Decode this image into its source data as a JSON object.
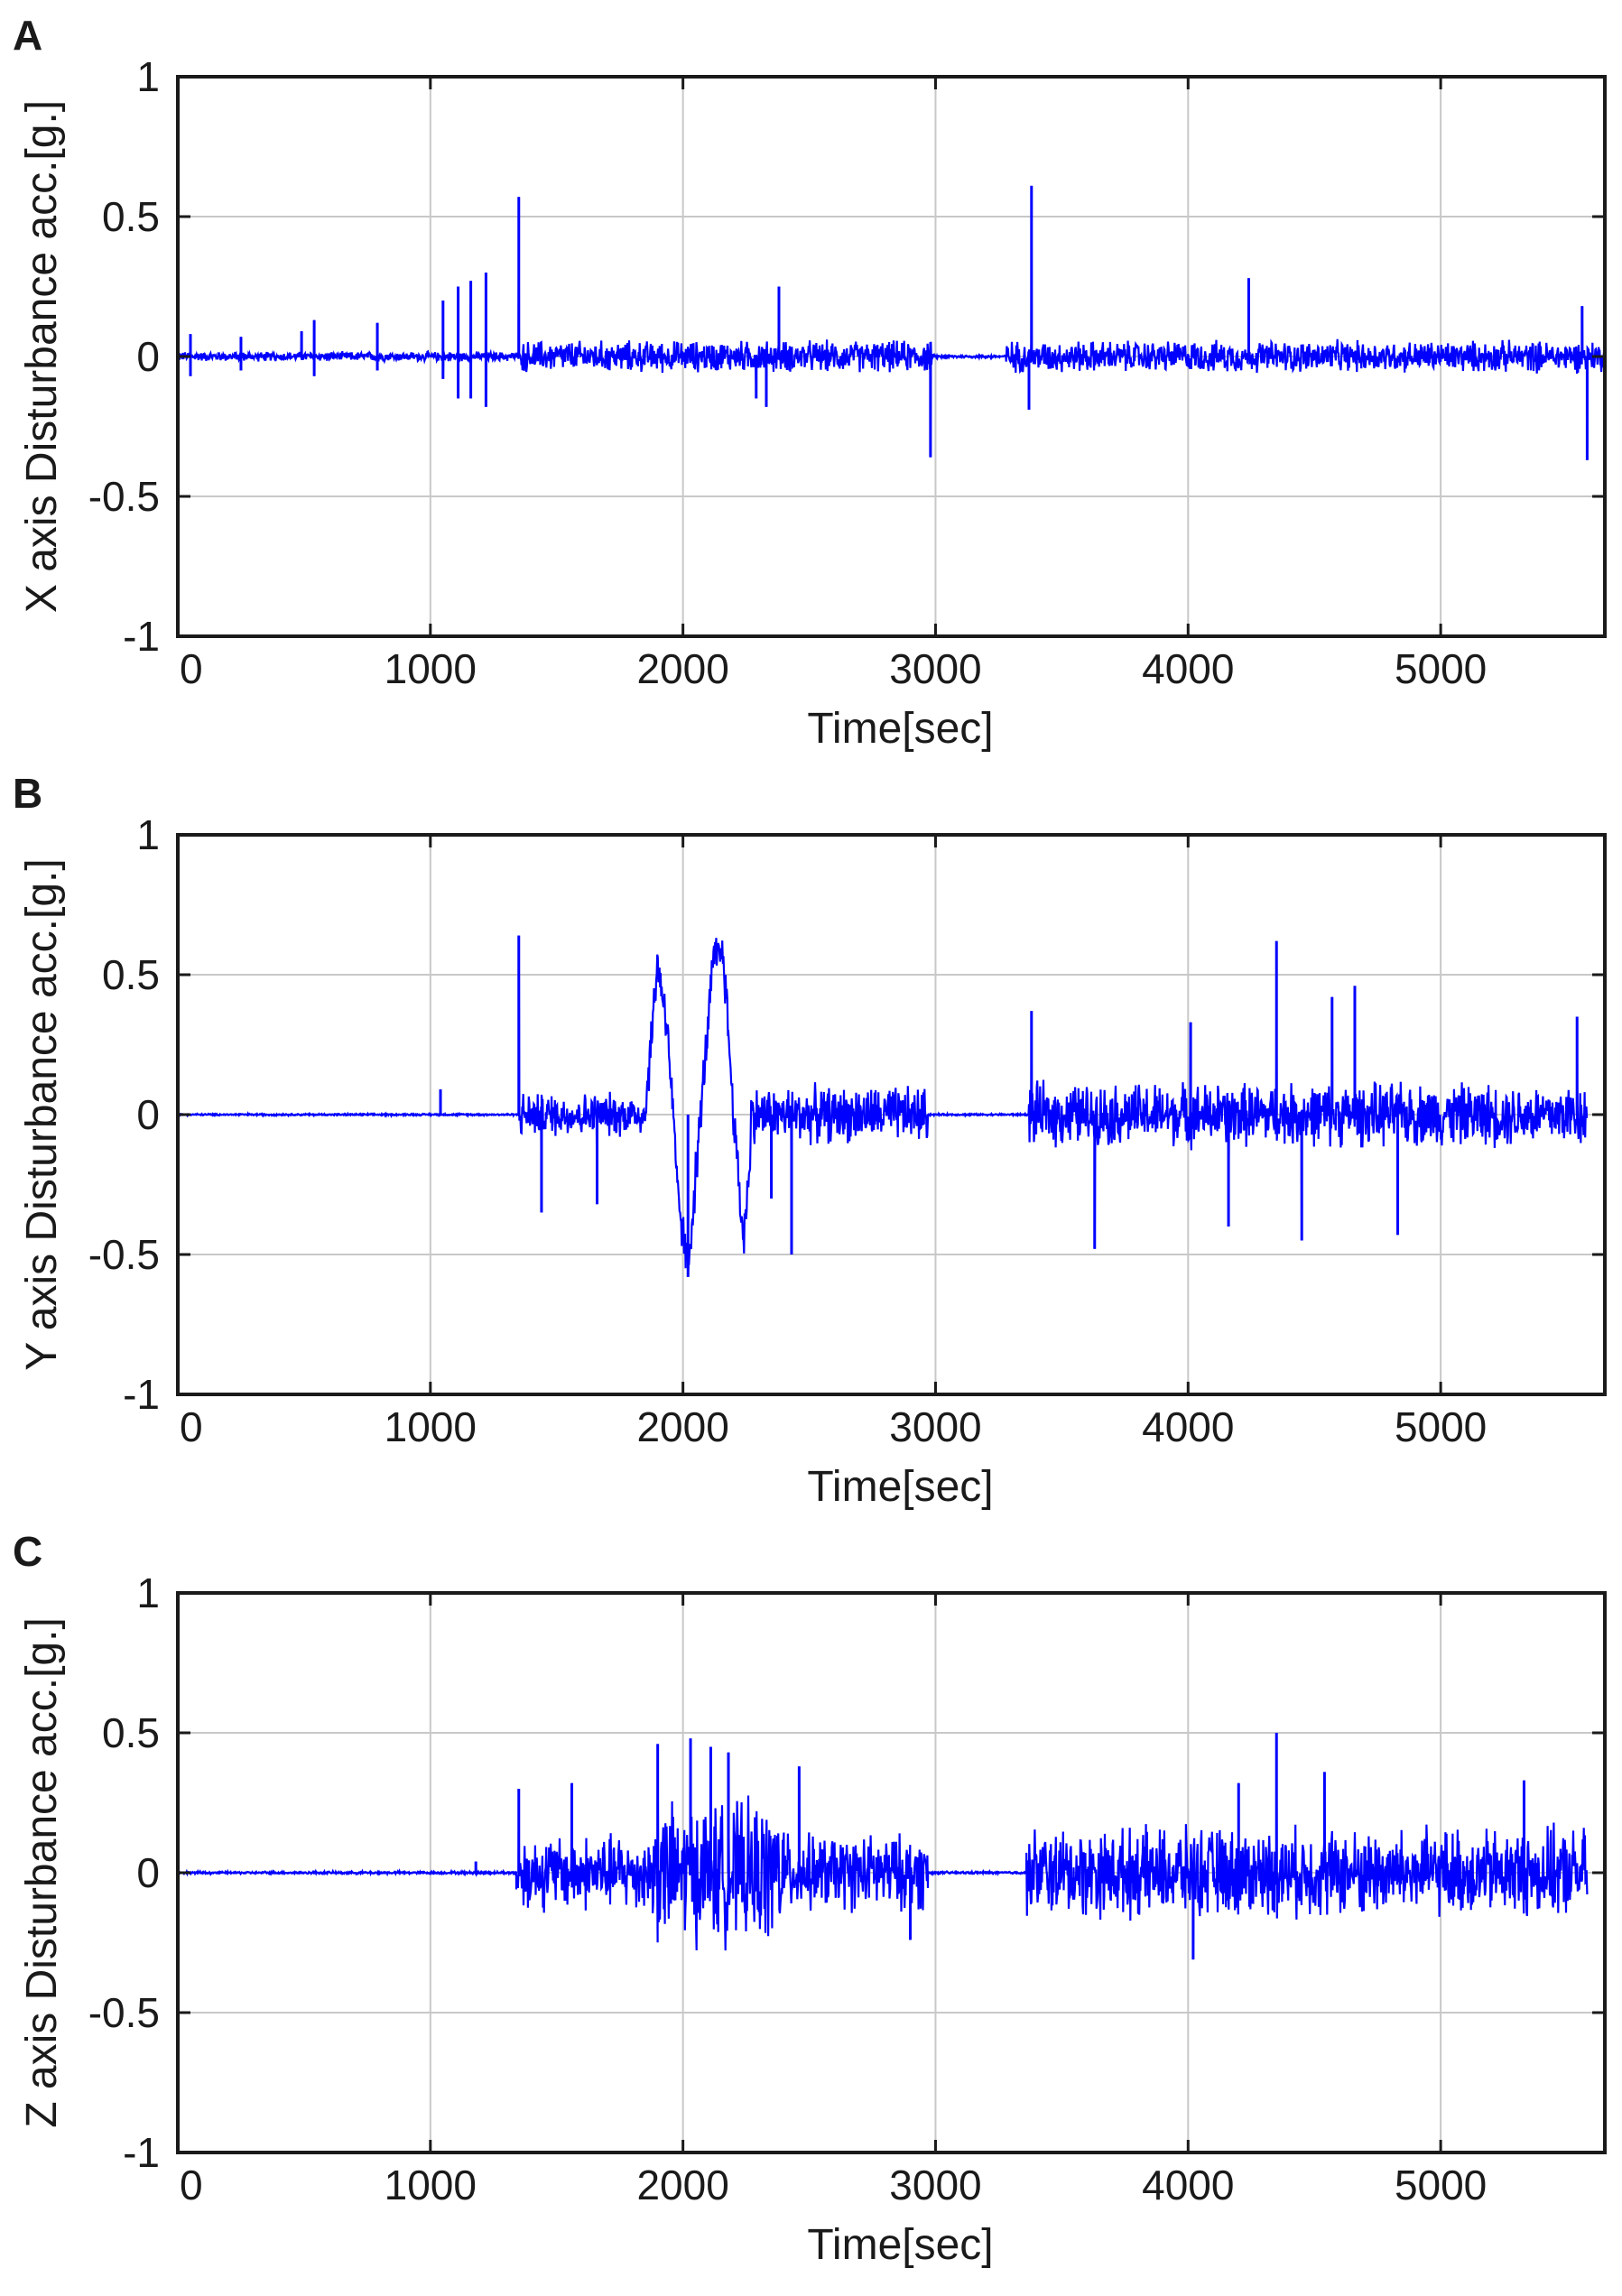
{
  "figure": {
    "panels": [
      {
        "panel_label": "A",
        "chart_data": {
          "type": "line",
          "title": "",
          "xlabel": "Time[sec]",
          "ylabel": "X axis Disturbance acc.[g.]",
          "xlim": [
            0,
            5650
          ],
          "ylim": [
            -1,
            1
          ],
          "xticks": [
            0,
            1000,
            2000,
            3000,
            4000,
            5000
          ],
          "xtick_labels": [
            "0",
            "1000",
            "2000",
            "3000",
            "4000",
            "5000"
          ],
          "yticks": [
            1,
            0.5,
            0,
            -0.5,
            -1
          ],
          "ytick_labels": [
            "1",
            "0.5",
            "0",
            "-0.5",
            "-1"
          ],
          "grid": true,
          "series": [
            {
              "color": "#0000ff",
              "segments": [
                {
                  "x": [
                    0,
                    1360
                  ],
                  "amplitude": 0.015
                },
                {
                  "x": [
                    1360,
                    2990
                  ],
                  "amplitude": 0.05
                },
                {
                  "x": [
                    2990,
                    3280
                  ],
                  "amplitude": 0.005
                },
                {
                  "x": [
                    3280,
                    5650
                  ],
                  "amplitude": 0.05
                }
              ],
              "spikes": [
                {
                  "x": 50,
                  "y": 0.08
                },
                {
                  "x": 50,
                  "y": -0.07
                },
                {
                  "x": 250,
                  "y": 0.07
                },
                {
                  "x": 250,
                  "y": -0.05
                },
                {
                  "x": 490,
                  "y": 0.09
                },
                {
                  "x": 540,
                  "y": 0.13
                },
                {
                  "x": 540,
                  "y": -0.07
                },
                {
                  "x": 790,
                  "y": 0.12
                },
                {
                  "x": 790,
                  "y": -0.05
                },
                {
                  "x": 1050,
                  "y": 0.2
                },
                {
                  "x": 1050,
                  "y": -0.08
                },
                {
                  "x": 1110,
                  "y": 0.25
                },
                {
                  "x": 1110,
                  "y": -0.15
                },
                {
                  "x": 1160,
                  "y": 0.27
                },
                {
                  "x": 1160,
                  "y": -0.15
                },
                {
                  "x": 1220,
                  "y": 0.3
                },
                {
                  "x": 1220,
                  "y": -0.18
                },
                {
                  "x": 1350,
                  "y": 0.57
                },
                {
                  "x": 2330,
                  "y": -0.18
                },
                {
                  "x": 2380,
                  "y": 0.25
                },
                {
                  "x": 2290,
                  "y": -0.15
                },
                {
                  "x": 2980,
                  "y": -0.36
                },
                {
                  "x": 3380,
                  "y": 0.61
                },
                {
                  "x": 3370,
                  "y": -0.19
                },
                {
                  "x": 4240,
                  "y": 0.28
                },
                {
                  "x": 5560,
                  "y": 0.18
                },
                {
                  "x": 5580,
                  "y": -0.37
                }
              ]
            }
          ]
        }
      },
      {
        "panel_label": "B",
        "chart_data": {
          "type": "line",
          "title": "",
          "xlabel": "Time[sec]",
          "ylabel": "Y axis Disturbance acc.[g.]",
          "xlim": [
            0,
            5650
          ],
          "ylim": [
            -1,
            1
          ],
          "xticks": [
            0,
            1000,
            2000,
            3000,
            4000,
            5000
          ],
          "xtick_labels": [
            "0",
            "1000",
            "2000",
            "3000",
            "4000",
            "5000"
          ],
          "yticks": [
            1,
            0.5,
            0,
            -0.5,
            -1
          ],
          "ytick_labels": [
            "1",
            "0.5",
            "0",
            "-0.5",
            "-1"
          ],
          "grid": true,
          "series": [
            {
              "color": "#0000ff",
              "segments": [
                {
                  "x": [
                    0,
                    1350
                  ],
                  "amplitude": 0.003
                },
                {
                  "x": [
                    1350,
                    1850
                  ],
                  "amplitude": 0.07
                },
                {
                  "x": [
                    1850,
                    2270
                  ],
                  "amplitude": 0.08,
                  "wave": [
                    [
                      1850,
                      0.0
                    ],
                    [
                      1900,
                      0.55
                    ],
                    [
                      1940,
                      0.3
                    ],
                    [
                      1980,
                      -0.3
                    ],
                    [
                      2020,
                      -0.55
                    ],
                    [
                      2070,
                      0.0
                    ],
                    [
                      2120,
                      0.55
                    ],
                    [
                      2160,
                      0.58
                    ],
                    [
                      2200,
                      0.0
                    ],
                    [
                      2240,
                      -0.45
                    ],
                    [
                      2270,
                      -0.1
                    ]
                  ]
                },
                {
                  "x": [
                    2270,
                    2970
                  ],
                  "amplitude": 0.09
                },
                {
                  "x": [
                    2970,
                    3370
                  ],
                  "amplitude": 0.003
                },
                {
                  "x": [
                    3370,
                    5580
                  ],
                  "amplitude": 0.1
                }
              ],
              "spikes": [
                {
                  "x": 1040,
                  "y": 0.09
                },
                {
                  "x": 1350,
                  "y": 0.64
                },
                {
                  "x": 1440,
                  "y": -0.35
                },
                {
                  "x": 1660,
                  "y": -0.32
                },
                {
                  "x": 2020,
                  "y": -0.58
                },
                {
                  "x": 2430,
                  "y": -0.5
                },
                {
                  "x": 2350,
                  "y": -0.3
                },
                {
                  "x": 3380,
                  "y": 0.37
                },
                {
                  "x": 3630,
                  "y": -0.48
                },
                {
                  "x": 4010,
                  "y": 0.33
                },
                {
                  "x": 4160,
                  "y": -0.4
                },
                {
                  "x": 4350,
                  "y": 0.62
                },
                {
                  "x": 4450,
                  "y": -0.45
                },
                {
                  "x": 4570,
                  "y": 0.42
                },
                {
                  "x": 4660,
                  "y": 0.46
                },
                {
                  "x": 4830,
                  "y": -0.43
                },
                {
                  "x": 5540,
                  "y": 0.35
                }
              ]
            }
          ]
        }
      },
      {
        "panel_label": "C",
        "chart_data": {
          "type": "line",
          "title": "",
          "xlabel": "Time[sec]",
          "ylabel": "Z axis Disturbance acc.[g.]",
          "xlim": [
            0,
            5650
          ],
          "ylim": [
            -1,
            1
          ],
          "xticks": [
            0,
            1000,
            2000,
            3000,
            4000,
            5000
          ],
          "xtick_labels": [
            "0",
            "1000",
            "2000",
            "3000",
            "4000",
            "5000"
          ],
          "yticks": [
            1,
            0.5,
            0,
            -0.5,
            -1
          ],
          "ytick_labels": [
            "1",
            "0.5",
            "0",
            "-0.5",
            "-1"
          ],
          "grid": true,
          "series": [
            {
              "color": "#0000ff",
              "segments": [
                {
                  "x": [
                    0,
                    1340
                  ],
                  "amplitude": 0.004
                },
                {
                  "x": [
                    1340,
                    1880
                  ],
                  "amplitude": 0.12
                },
                {
                  "x": [
                    1880,
                    2400
                  ],
                  "amplitude": 0.22
                },
                {
                  "x": [
                    2400,
                    2970
                  ],
                  "amplitude": 0.12
                },
                {
                  "x": [
                    2970,
                    3360
                  ],
                  "amplitude": 0.004
                },
                {
                  "x": [
                    3360,
                    5580
                  ],
                  "amplitude": 0.14
                }
              ],
              "spikes": [
                {
                  "x": 1180,
                  "y": 0.04
                },
                {
                  "x": 1350,
                  "y": 0.3
                },
                {
                  "x": 1560,
                  "y": 0.32
                },
                {
                  "x": 1900,
                  "y": 0.46
                },
                {
                  "x": 2030,
                  "y": 0.48
                },
                {
                  "x": 2110,
                  "y": 0.45
                },
                {
                  "x": 2180,
                  "y": 0.43
                },
                {
                  "x": 2460,
                  "y": 0.38
                },
                {
                  "x": 2900,
                  "y": -0.24
                },
                {
                  "x": 4020,
                  "y": -0.31
                },
                {
                  "x": 4350,
                  "y": 0.5
                },
                {
                  "x": 4200,
                  "y": 0.32
                },
                {
                  "x": 4540,
                  "y": 0.36
                },
                {
                  "x": 5330,
                  "y": 0.33
                }
              ]
            }
          ]
        }
      }
    ]
  }
}
